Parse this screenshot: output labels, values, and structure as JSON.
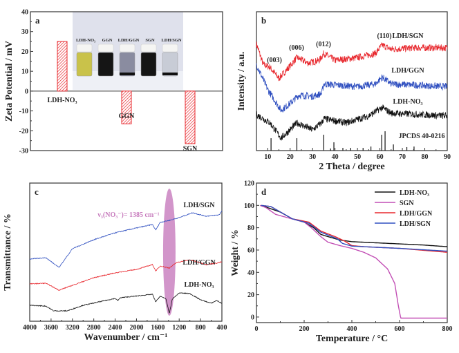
{
  "chart_data": [
    {
      "panel": "a",
      "type": "bar",
      "ylabel": "Zeta Potential / mV",
      "ylim": [
        -30,
        40
      ],
      "yticks": [
        -30,
        -20,
        -10,
        0,
        10,
        20,
        30,
        40
      ],
      "categories": [
        "LDH-NO₃",
        "GGN",
        "SGN"
      ],
      "values": [
        25,
        -16.5,
        -26.5
      ],
      "bar_color": "#e8282e",
      "inset_photo": {
        "vial_labels": [
          "LDH-NO₃",
          "GGN",
          "LDH/GGN",
          "SGN",
          "LDH/SGN"
        ],
        "vial_colors": [
          "#c9c24a",
          "#151515",
          "#8a8ca0",
          "#151515",
          "#c8ccd6"
        ]
      }
    },
    {
      "panel": "b",
      "type": "line",
      "xlabel": "2 Theta / degree",
      "ylabel": "Intensity / a.u.",
      "xlim": [
        5,
        90
      ],
      "xticks": [
        10,
        20,
        30,
        40,
        50,
        60,
        70,
        80,
        90
      ],
      "ylim": [
        0,
        100
      ],
      "series": [
        {
          "name": "LDH/SGN",
          "color": "#e8282e",
          "x": [
            5,
            8,
            11,
            15,
            20,
            23,
            28,
            33,
            35,
            40,
            50,
            58,
            61,
            65,
            75,
            90
          ],
          "y": [
            77,
            62,
            60,
            52,
            61,
            67,
            63,
            65,
            70,
            65,
            67,
            70,
            76,
            73,
            74,
            74
          ]
        },
        {
          "name": "LDH/GGN",
          "color": "#2f4fc0",
          "x": [
            5,
            10,
            16,
            20,
            24,
            30,
            34,
            35,
            50,
            58,
            61,
            65,
            90
          ],
          "y": [
            62,
            44,
            29,
            34,
            40,
            39,
            41,
            48,
            46,
            48,
            53,
            48,
            46
          ]
        },
        {
          "name": "LDH-NO₃",
          "color": "#111111",
          "x": [
            5,
            11,
            16,
            20,
            23,
            30,
            34,
            35,
            45,
            55,
            61,
            65,
            90
          ],
          "y": [
            26,
            20,
            9,
            15,
            20,
            15,
            20,
            23,
            20,
            25,
            31,
            27,
            25
          ]
        }
      ],
      "reference": {
        "name": "JPCDS 40-0216",
        "positions": [
          11.5,
          23,
          35,
          38,
          39.5,
          43.5,
          47,
          52.5,
          56,
          60.8,
          62.3,
          66,
          72,
          75.2
        ],
        "intensities": [
          64,
          64,
          82,
          11,
          43,
          14,
          14,
          14,
          21,
          82,
          100,
          32,
          18,
          21
        ]
      },
      "annotations": [
        "(003)",
        "(006)",
        "(012)",
        "(110)"
      ]
    },
    {
      "panel": "c",
      "type": "line",
      "xlabel": "Wavenumber / cm⁻¹",
      "ylabel": "Transmittance / %",
      "xlim": [
        4000,
        400
      ],
      "xticks": [
        4000,
        3600,
        3200,
        2800,
        2400,
        2000,
        1600,
        1200,
        800,
        400
      ],
      "ylim": [
        0,
        100
      ],
      "series": [
        {
          "name": "LDH/SGN",
          "color": "#2f4fc0",
          "x": [
            4000,
            3700,
            3450,
            3200,
            2800,
            2400,
            2000,
            1700,
            1640,
            1560,
            1385,
            1200,
            950,
            700,
            450,
            400
          ],
          "y": [
            45,
            46,
            39,
            52.5,
            59,
            64,
            67.5,
            70,
            66,
            71.5,
            73,
            75,
            78.5,
            76,
            77,
            80
          ]
        },
        {
          "name": "LDH/GGN",
          "color": "#e8282e",
          "x": [
            4000,
            3700,
            3450,
            3200,
            2800,
            2400,
            2000,
            1700,
            1640,
            1550,
            1385,
            1250,
            1000,
            700,
            500,
            400
          ],
          "y": [
            27,
            27.5,
            22.5,
            26,
            31.5,
            35,
            37.5,
            41,
            36.5,
            40,
            38.5,
            42.5,
            44.5,
            41,
            42,
            43
          ]
        },
        {
          "name": "LDH-NO₃",
          "color": "#111111",
          "x": [
            4000,
            3700,
            3550,
            3300,
            3000,
            2400,
            2350,
            2300,
            1700,
            1640,
            1560,
            1450,
            1385,
            1330,
            1200,
            1000,
            800,
            600,
            500,
            400
          ],
          "y": [
            11.5,
            11,
            7.5,
            7.5,
            11.5,
            16.5,
            15,
            17,
            19.5,
            14,
            18,
            16.5,
            5.5,
            16,
            20.5,
            20,
            15.5,
            13,
            15,
            13
          ]
        }
      ],
      "annotation": "ν₃(NO₃⁻)= 1385 cm⁻¹",
      "highlight_color": "#c77bbd"
    },
    {
      "panel": "d",
      "type": "line",
      "xlabel": "Temperature / °C",
      "ylabel": "Weight / %",
      "xlim": [
        0,
        800
      ],
      "xticks": [
        0,
        200,
        400,
        600,
        800
      ],
      "ylim": [
        -5,
        120
      ],
      "yticks": [
        0,
        20,
        40,
        60,
        80,
        100,
        120
      ],
      "legend": "top-right",
      "series": [
        {
          "name": "LDH-NO₃",
          "color": "#111111",
          "x": [
            20,
            100,
            150,
            200,
            240,
            270,
            300,
            350,
            400,
            500,
            600,
            700,
            800
          ],
          "y": [
            100,
            94,
            88,
            85,
            80,
            74,
            72,
            69,
            67.5,
            66.5,
            65.5,
            64.5,
            63
          ]
        },
        {
          "name": "SGN",
          "color": "#c24fb5",
          "x": [
            15,
            40,
            80,
            130,
            200,
            230,
            270,
            300,
            350,
            400,
            450,
            500,
            550,
            580,
            595,
            605,
            800
          ],
          "y": [
            100,
            98,
            92,
            89,
            85,
            80,
            72,
            67,
            64,
            61.5,
            58,
            53,
            43,
            30,
            10,
            -1,
            -1
          ]
        },
        {
          "name": "LDH/GGN",
          "color": "#e8282e",
          "x": [
            20,
            60,
            150,
            220,
            270,
            330,
            370,
            400,
            450,
            600,
            800
          ],
          "y": [
            100,
            99,
            88,
            85,
            77,
            72,
            68,
            64,
            63,
            61.5,
            58
          ]
        },
        {
          "name": "LDH/SGN",
          "color": "#2f4fc0",
          "x": [
            20,
            60,
            150,
            220,
            270,
            340,
            360,
            400,
            500,
            600,
            800
          ],
          "y": [
            100,
            99,
            88,
            84,
            76,
            70,
            66,
            63.5,
            62.5,
            61.5,
            59
          ]
        }
      ]
    }
  ]
}
